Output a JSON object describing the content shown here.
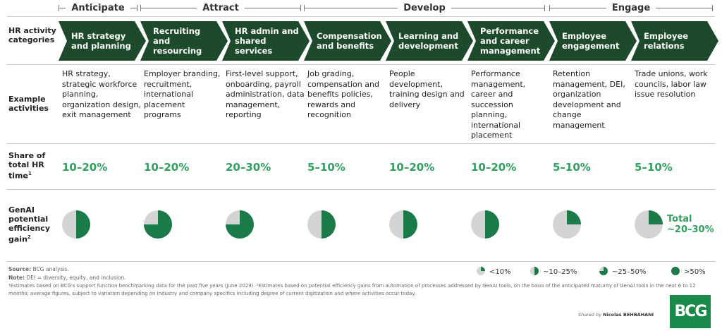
{
  "phases": [
    "Anticipate",
    "Attract",
    "Develop",
    "Engage"
  ],
  "row_labels": {
    "categories": "HR activity categories",
    "examples": "Example activities",
    "share": "Share of total HR time",
    "share_sup": "1",
    "genai": "GenAI potential efficiency gain",
    "genai_sup": "2"
  },
  "columns": [
    {
      "category": "HR strategy and planning",
      "examples": "HR strategy, strategic workforce planning, organization design, exit management",
      "share": "10–20%",
      "gain_fraction": 0.5
    },
    {
      "category": "Recruiting and resourcing",
      "examples": "Employer branding, recruitment, international placement programs",
      "share": "10–20%",
      "gain_fraction": 0.75
    },
    {
      "category": "HR admin and shared services",
      "examples": "First-level support, onboarding, payroll administration, data management, reporting",
      "share": "20–30%",
      "gain_fraction": 0.75
    },
    {
      "category": "Compensation and benefits",
      "examples": "Job grading, compensation and benefits policies, rewards and recognition",
      "share": "5–10%",
      "gain_fraction": 0.5
    },
    {
      "category": "Learning and development",
      "examples": "People development, training design and delivery",
      "share": "10–20%",
      "gain_fraction": 0.5
    },
    {
      "category": "Performance and career management",
      "examples": "Performance management, career and succession planning, international placement",
      "share": "10–20%",
      "gain_fraction": 0.5
    },
    {
      "category": "Employee engagement",
      "examples": "Retention management, DEI, organization development and change management",
      "share": "5–10%",
      "gain_fraction": 0.25
    },
    {
      "category": "Employee relations",
      "examples": "Trade unions, work councils, labor law issue resolution",
      "share": "5–10%",
      "gain_fraction": 0.25
    }
  ],
  "total": {
    "label": "Total",
    "value": "~20–30%"
  },
  "legend": [
    {
      "label": "<10%",
      "fraction": 0.25
    },
    {
      "label": "~10–25%",
      "fraction": 0.5
    },
    {
      "label": "~25–50%",
      "fraction": 0.75
    },
    {
      "label": ">50%",
      "fraction": 1
    }
  ],
  "footer": {
    "source_label": "Source:",
    "source": "BCG analysis.",
    "note_label": "Note:",
    "note": "DEI = diversity, equity, and inclusion.",
    "footnotes": "¹Estimates based on BCG's support function benchmarking data for the past five years (June 2023). ²Estimates based on potential efficiency gains from automation of processes addressed by GenAI tools, on the basis of the anticipated maturity of GenAI tools in the next 6 to 12 months; average figures, subject to variation depending on industry and company specifics including degree of current digitization and where activities occur today.",
    "shared_by": "Shared by",
    "shared_name": "Nicolas BEHBAHANI",
    "logo": "BCG"
  },
  "colors": {
    "chevron": "#1d4a2a",
    "share_text": "#2fa05d",
    "pie_fill": "#1a7a48",
    "pie_bg": "#d4d4d4"
  }
}
